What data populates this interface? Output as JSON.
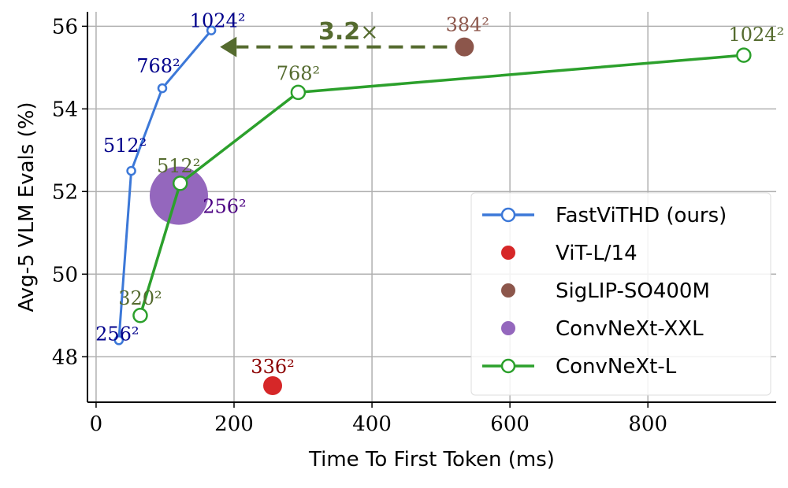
{
  "chart_data": {
    "type": "line",
    "xlabel": "Time To First Token (ms)",
    "ylabel": "Avg-5 VLM Evals (%)",
    "xlim": [
      -12.5,
      986
    ],
    "ylim": [
      46.9,
      56.35
    ],
    "xticks": [
      0,
      200,
      400,
      600,
      800
    ],
    "yticks": [
      48,
      50,
      52,
      54,
      56
    ],
    "grid": true,
    "legend_position": "lower-right",
    "series": [
      {
        "name": "FastViTHD (ours)",
        "kind": "line",
        "color": "#3c78d8",
        "label_color": "#00008b",
        "x": [
          33,
          51,
          96,
          167
        ],
        "y": [
          48.4,
          52.5,
          54.5,
          55.9
        ],
        "labels": [
          "256²",
          "512²",
          "768²",
          "1024²"
        ]
      },
      {
        "name": "ViT-L/14",
        "kind": "point",
        "color": "#d62728",
        "label_color": "#8b0000",
        "x": [
          256
        ],
        "y": [
          47.3
        ],
        "labels": [
          "336²"
        ]
      },
      {
        "name": "SigLIP-SO400M",
        "kind": "point",
        "color": "#8c564b",
        "label_color": "#8c564b",
        "x": [
          534
        ],
        "y": [
          55.5
        ],
        "labels": [
          "384²"
        ]
      },
      {
        "name": "ConvNeXt-XXL",
        "kind": "point",
        "size": "large",
        "color": "#9467bd",
        "label_color": "#4b0082",
        "x": [
          120
        ],
        "y": [
          51.9
        ],
        "labels": [
          "256²"
        ]
      },
      {
        "name": "ConvNeXt-L",
        "kind": "line",
        "color": "#2ca02c",
        "label_color": "#556b2f",
        "x": [
          64,
          122,
          293,
          939
        ],
        "y": [
          49.0,
          52.2,
          54.4,
          55.3
        ],
        "labels": [
          "320²",
          "512²",
          "768²",
          "1024²"
        ]
      }
    ],
    "annotation": {
      "text_bold": "3.2",
      "text_suffix": "×",
      "from_x": 534,
      "to_x": 190,
      "y": 55.5,
      "color": "#556b2f"
    }
  }
}
